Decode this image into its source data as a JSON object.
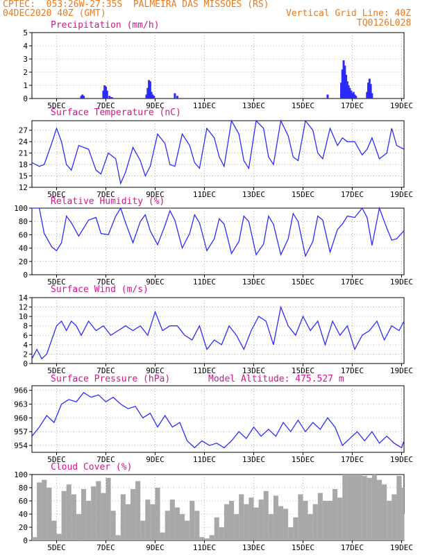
{
  "header": {
    "line1": "CPTEC:  053:26W-27:35S  PALMEIRA DAS MISSOES (RS)",
    "line2": "04DEC2020 40Z (GMT)",
    "vgrid": "Vertical Grid Line: 40Z",
    "code": "TQ0126L028"
  },
  "colors": {
    "header": "#e87a1e",
    "title": "#d4148c",
    "line": "#2b2bff",
    "bar": "#2b2bff",
    "cloud": "#a8a8a8",
    "grid": "#9a9a9a"
  },
  "x_ticks": [
    "5DEC",
    "7DEC",
    "9DEC",
    "11DEC",
    "13DEC",
    "15DEC",
    "17DEC",
    "19DEC"
  ],
  "chart_data": [
    {
      "id": "precip",
      "type": "bar",
      "title": "Precipitation (mm/h)",
      "xlim": [
        4,
        19.1
      ],
      "ylim": [
        0,
        5
      ],
      "yticks": [
        "0",
        "1",
        "2",
        "3",
        "4",
        "5"
      ],
      "x": [
        6.0,
        6.05,
        6.1,
        6.9,
        6.95,
        7.0,
        7.05,
        7.15,
        7.2,
        7.25,
        8.65,
        8.7,
        8.75,
        8.8,
        8.85,
        8.9,
        8.95,
        9.8,
        9.9,
        16.0,
        16.55,
        16.6,
        16.65,
        16.7,
        16.75,
        16.8,
        16.85,
        16.9,
        16.95,
        17.0,
        17.05,
        17.1,
        17.15,
        17.6,
        17.65,
        17.7,
        17.75,
        17.8
      ],
      "values": [
        0.2,
        0.3,
        0.2,
        0.6,
        1.0,
        0.9,
        0.6,
        0.2,
        0.1,
        0.1,
        0.3,
        0.8,
        1.4,
        1.3,
        0.5,
        0.3,
        0.2,
        0.4,
        0.2,
        0.3,
        1.2,
        2.2,
        2.9,
        2.5,
        1.8,
        1.3,
        1.0,
        0.8,
        0.6,
        0.4,
        0.5,
        0.3,
        0.2,
        0.5,
        1.2,
        1.5,
        1.1,
        0.4
      ]
    },
    {
      "id": "temp",
      "type": "line",
      "title": "Surface Temperature (nC)",
      "xlim": [
        4,
        19.1
      ],
      "ylim": [
        12,
        29.5
      ],
      "yticks": [
        "12",
        "15",
        "18",
        "21",
        "24",
        "27"
      ],
      "x": [
        4,
        4.3,
        4.5,
        4.8,
        5.0,
        5.2,
        5.4,
        5.6,
        5.9,
        6.3,
        6.6,
        6.8,
        7.1,
        7.4,
        7.6,
        7.8,
        8.1,
        8.4,
        8.6,
        8.8,
        9.1,
        9.4,
        9.6,
        9.8,
        10.1,
        10.4,
        10.6,
        10.8,
        11.1,
        11.4,
        11.6,
        11.8,
        12.1,
        12.4,
        12.6,
        12.8,
        13.1,
        13.4,
        13.6,
        13.8,
        14.1,
        14.4,
        14.6,
        14.8,
        15.1,
        15.4,
        15.6,
        15.8,
        16.1,
        16.4,
        16.6,
        16.8,
        17.1,
        17.4,
        17.6,
        17.8,
        18.1,
        18.4,
        18.6,
        18.8,
        19.1
      ],
      "values": [
        18.5,
        17.5,
        18.0,
        23.5,
        27.5,
        24.0,
        18.0,
        16.5,
        23.0,
        22.0,
        16.5,
        15.5,
        21.0,
        19.5,
        13.0,
        16.0,
        22.5,
        19.0,
        15.0,
        17.5,
        26.0,
        23.5,
        18.0,
        17.5,
        26.0,
        23.0,
        18.5,
        17.0,
        27.5,
        25.0,
        20.0,
        17.5,
        29.5,
        26.0,
        19.0,
        17.0,
        29.5,
        27.5,
        20.0,
        18.0,
        29.5,
        25.5,
        20.0,
        19.0,
        29.5,
        27.0,
        21.0,
        19.5,
        27.5,
        23.0,
        25.0,
        24.0,
        24.0,
        20.5,
        22.0,
        25.0,
        19.5,
        21.0,
        27.5,
        23.0,
        22.0
      ]
    },
    {
      "id": "rh",
      "type": "line",
      "title": "Relative Humidity (%)",
      "xlim": [
        4,
        19.1
      ],
      "ylim": [
        0,
        100
      ],
      "yticks": [
        "0",
        "20",
        "40",
        "60",
        "80",
        "100"
      ],
      "x": [
        4,
        4.3,
        4.5,
        4.8,
        5.0,
        5.2,
        5.4,
        5.6,
        5.9,
        6.3,
        6.6,
        6.8,
        7.1,
        7.4,
        7.6,
        7.8,
        8.1,
        8.4,
        8.6,
        8.8,
        9.1,
        9.4,
        9.6,
        9.8,
        10.1,
        10.4,
        10.6,
        10.8,
        11.1,
        11.4,
        11.6,
        11.8,
        12.1,
        12.4,
        12.6,
        12.8,
        13.1,
        13.4,
        13.6,
        13.8,
        14.1,
        14.4,
        14.6,
        14.8,
        15.1,
        15.4,
        15.6,
        15.8,
        16.1,
        16.4,
        16.6,
        16.8,
        17.1,
        17.4,
        17.6,
        17.8,
        18.1,
        18.4,
        18.6,
        18.8,
        19.1
      ],
      "values": [
        100,
        100,
        62,
        42,
        36,
        48,
        88,
        78,
        58,
        82,
        86,
        62,
        60,
        88,
        100,
        78,
        48,
        80,
        90,
        66,
        45,
        74,
        96,
        82,
        40,
        62,
        90,
        78,
        36,
        54,
        84,
        76,
        32,
        50,
        88,
        80,
        30,
        46,
        88,
        76,
        30,
        54,
        92,
        80,
        28,
        50,
        88,
        82,
        34,
        68,
        76,
        88,
        86,
        100,
        86,
        44,
        100,
        70,
        52,
        54,
        66
      ]
    },
    {
      "id": "wind",
      "type": "line",
      "title": "Surface Wind (m/s)",
      "xlim": [
        4,
        19.1
      ],
      "ylim": [
        0,
        14
      ],
      "yticks": [
        "0",
        "2",
        "4",
        "6",
        "8",
        "10",
        "12",
        "14"
      ],
      "x": [
        4,
        4.2,
        4.4,
        4.6,
        4.8,
        5.0,
        5.2,
        5.4,
        5.6,
        5.8,
        6.0,
        6.3,
        6.6,
        6.9,
        7.2,
        7.5,
        7.8,
        8.1,
        8.4,
        8.7,
        9.0,
        9.3,
        9.6,
        9.9,
        10.2,
        10.5,
        10.8,
        11.1,
        11.4,
        11.7,
        12.0,
        12.3,
        12.6,
        12.9,
        13.2,
        13.5,
        13.8,
        14.1,
        14.4,
        14.7,
        15.0,
        15.3,
        15.6,
        15.9,
        16.2,
        16.5,
        16.8,
        17.1,
        17.4,
        17.7,
        18.0,
        18.3,
        18.6,
        18.9,
        19.1
      ],
      "values": [
        1,
        3,
        1,
        2,
        5,
        8,
        9,
        7,
        9,
        8,
        6,
        9,
        7,
        8,
        6,
        7,
        8,
        7,
        8,
        6,
        11,
        7,
        8,
        8,
        6,
        5,
        8,
        3,
        5,
        4,
        8,
        6,
        3,
        7,
        10,
        9,
        4,
        12,
        8,
        6,
        10,
        7,
        9,
        4,
        9,
        6,
        8,
        3,
        6,
        7,
        9,
        5,
        8,
        7,
        9
      ]
    },
    {
      "id": "pressure",
      "type": "line",
      "title": "Surface Pressure (hPa)",
      "annotation": "Model Altitude: 475.527 m",
      "xlim": [
        4,
        19.1
      ],
      "ylim": [
        952.5,
        967
      ],
      "yticks": [
        "954",
        "957",
        "960",
        "963",
        "966"
      ],
      "x": [
        4,
        4.3,
        4.6,
        4.9,
        5.2,
        5.5,
        5.8,
        6.1,
        6.4,
        6.7,
        7.0,
        7.3,
        7.6,
        7.9,
        8.2,
        8.5,
        8.8,
        9.1,
        9.4,
        9.7,
        10.0,
        10.3,
        10.6,
        10.9,
        11.2,
        11.5,
        11.8,
        12.1,
        12.4,
        12.7,
        13.0,
        13.3,
        13.6,
        13.9,
        14.2,
        14.5,
        14.8,
        15.1,
        15.4,
        15.7,
        16.0,
        16.3,
        16.6,
        16.9,
        17.2,
        17.5,
        17.8,
        18.1,
        18.4,
        18.7,
        19.0,
        19.1
      ],
      "values": [
        956,
        958,
        960.5,
        959,
        963,
        964,
        963.5,
        965.5,
        964.5,
        965,
        963.5,
        964.5,
        963,
        962,
        962.5,
        960,
        961,
        958,
        960.5,
        958,
        959,
        955,
        953.5,
        955,
        954,
        954.5,
        953.5,
        955,
        957,
        955.5,
        958,
        956,
        957.5,
        956,
        959,
        957,
        959.5,
        957,
        959,
        957.5,
        960,
        958,
        954,
        955.5,
        957,
        955,
        957,
        954.5,
        956,
        954.5,
        953.5,
        955
      ]
    },
    {
      "id": "cloud",
      "type": "area",
      "title": "Cloud Cover (%)",
      "xlim": [
        4,
        19.1
      ],
      "ylim": [
        0,
        100
      ],
      "yticks": [
        "0",
        "20",
        "40",
        "60",
        "80",
        "100"
      ],
      "x": [
        4,
        4.2,
        4.4,
        4.6,
        4.8,
        5.0,
        5.2,
        5.4,
        5.6,
        5.8,
        6.0,
        6.2,
        6.4,
        6.6,
        6.8,
        7.0,
        7.2,
        7.4,
        7.6,
        7.8,
        8.0,
        8.2,
        8.4,
        8.6,
        8.8,
        9.0,
        9.2,
        9.4,
        9.6,
        9.8,
        10.0,
        10.2,
        10.4,
        10.6,
        10.8,
        11.0,
        11.2,
        11.4,
        11.6,
        11.8,
        12.0,
        12.2,
        12.4,
        12.6,
        12.8,
        13.0,
        13.2,
        13.4,
        13.6,
        13.8,
        14.0,
        14.2,
        14.4,
        14.6,
        14.8,
        15.0,
        15.2,
        15.4,
        15.6,
        15.8,
        16.0,
        16.2,
        16.4,
        16.6,
        16.8,
        17.0,
        17.2,
        17.4,
        17.6,
        17.8,
        18.0,
        18.2,
        18.4,
        18.6,
        18.8,
        19.0,
        19.1
      ],
      "values": [
        5,
        88,
        92,
        80,
        30,
        10,
        75,
        85,
        70,
        40,
        78,
        60,
        82,
        90,
        72,
        95,
        45,
        8,
        70,
        55,
        78,
        90,
        30,
        62,
        55,
        80,
        12,
        45,
        62,
        50,
        40,
        30,
        60,
        45,
        5,
        3,
        8,
        35,
        20,
        55,
        60,
        40,
        70,
        55,
        65,
        50,
        62,
        75,
        40,
        68,
        52,
        48,
        20,
        35,
        70,
        60,
        40,
        55,
        72,
        60,
        60,
        78,
        65,
        100,
        100,
        100,
        100,
        98,
        95,
        100,
        92,
        85,
        60,
        70,
        98,
        80,
        40
      ]
    }
  ]
}
